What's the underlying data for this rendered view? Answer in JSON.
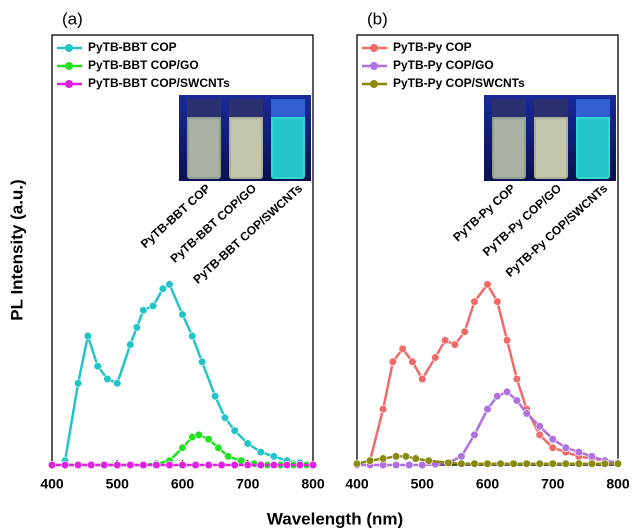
{
  "xlabel": "Wavelength (nm)",
  "ylabel": "PL Intensity (a.u.)",
  "chart_data": [
    {
      "type": "line",
      "panel": "(a)",
      "xlim": [
        400,
        800
      ],
      "xticks": [
        400,
        500,
        600,
        700,
        800
      ],
      "ylim": [
        0,
        100
      ],
      "annotations": [
        "PyTB-BBT COP",
        "PyTB-BBT COP/GO",
        "PyTB-BBT COP/SWCNTs"
      ],
      "series": [
        {
          "name": "PyTB-BBT COP",
          "color": "#22c4c8",
          "x": [
            420,
            440,
            455,
            470,
            485,
            500,
            520,
            530,
            540,
            555,
            570,
            580,
            600,
            615,
            630,
            650,
            665,
            680,
            700,
            720,
            740,
            760,
            780,
            800
          ],
          "values": [
            1,
            19,
            30,
            23,
            20,
            19,
            28,
            32,
            36,
            37,
            41,
            42,
            35,
            30,
            24,
            16,
            11,
            8,
            5,
            3,
            2,
            1,
            0.5,
            0
          ]
        },
        {
          "name": "PyTB-BBT COP/GO",
          "color": "#22e022",
          "x": [
            400,
            420,
            440,
            460,
            480,
            500,
            520,
            540,
            560,
            580,
            600,
            615,
            625,
            640,
            655,
            670,
            690,
            710,
            730,
            750,
            770,
            790,
            800
          ],
          "values": [
            0,
            0,
            0,
            0,
            0,
            0,
            0,
            0,
            0.3,
            1,
            4,
            6.5,
            7,
            6,
            4,
            2,
            1,
            0.3,
            0,
            0,
            0,
            0,
            0
          ]
        },
        {
          "name": "PyTB-BBT COP/SWCNTs",
          "color": "#e020e0",
          "x": [
            400,
            420,
            440,
            460,
            480,
            500,
            520,
            540,
            560,
            580,
            600,
            620,
            640,
            660,
            680,
            700,
            720,
            740,
            760,
            780,
            800
          ],
          "values": [
            0,
            0,
            0,
            0,
            0,
            0,
            0,
            0,
            0,
            0,
            0,
            0,
            0,
            0,
            0,
            0,
            0,
            0,
            0,
            0,
            0
          ]
        }
      ]
    },
    {
      "type": "line",
      "panel": "(b)",
      "xlim": [
        400,
        800
      ],
      "xticks": [
        400,
        500,
        600,
        700,
        800
      ],
      "ylim": [
        0,
        100
      ],
      "annotations": [
        "PyTB-Py COP",
        "PyTB-Py COP/GO",
        "PyTB-Py COP/SWCNTs"
      ],
      "series": [
        {
          "name": "PyTB-Py COP",
          "color": "#f06a6a",
          "x": [
            420,
            440,
            455,
            470,
            485,
            500,
            520,
            535,
            550,
            565,
            580,
            600,
            615,
            630,
            645,
            660,
            680,
            700,
            720,
            740,
            760,
            780,
            800
          ],
          "values": [
            1,
            13,
            24,
            27,
            24,
            20,
            25,
            29,
            28,
            31,
            38,
            42,
            38,
            29,
            20,
            13,
            7,
            4,
            3,
            2,
            1.5,
            1,
            0.5
          ]
        },
        {
          "name": "PyTB-Py COP/GO",
          "color": "#b070e0",
          "x": [
            400,
            420,
            440,
            460,
            480,
            500,
            520,
            540,
            560,
            580,
            600,
            615,
            630,
            645,
            660,
            680,
            700,
            720,
            740,
            760,
            780,
            800
          ],
          "values": [
            0,
            0,
            0,
            0,
            0,
            0,
            0.2,
            0.5,
            2,
            7,
            13,
            16,
            17,
            15,
            12,
            9,
            6,
            4,
            3,
            2,
            1,
            0.5
          ]
        },
        {
          "name": "PyTB-Py COP/SWCNTs",
          "color": "#8a8a10",
          "x": [
            400,
            420,
            440,
            460,
            475,
            490,
            510,
            540,
            560,
            580,
            600,
            620,
            640,
            660,
            680,
            700,
            720,
            740,
            760,
            780,
            800
          ],
          "values": [
            0.3,
            1,
            1.5,
            2,
            2,
            1.5,
            1,
            0.5,
            0.3,
            0.3,
            0.3,
            0.3,
            0.3,
            0.3,
            0.3,
            0.3,
            0.3,
            0.3,
            0.3,
            0.3,
            0.3
          ]
        }
      ]
    }
  ]
}
